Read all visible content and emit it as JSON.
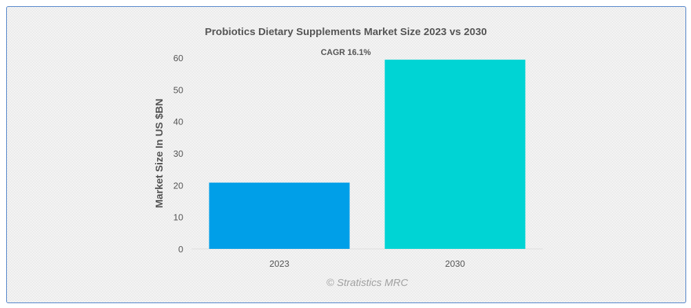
{
  "chart_data": {
    "type": "bar",
    "title": "Probiotics Dietary Supplements Market Size 2023 vs 2030",
    "annotation": "CAGR 16.1%",
    "categories": [
      "2023",
      "2030"
    ],
    "values": [
      20.8,
      59.4
    ],
    "colors": [
      "#009fe8",
      "#00d4d4"
    ],
    "xlabel": "",
    "ylabel": "Market Size In US $BN",
    "ylim": [
      0,
      60
    ],
    "yticks": [
      "0",
      "10",
      "20",
      "30",
      "40",
      "50",
      "60"
    ],
    "grid": false,
    "legend": "none"
  },
  "credit": "© Stratistics MRC"
}
